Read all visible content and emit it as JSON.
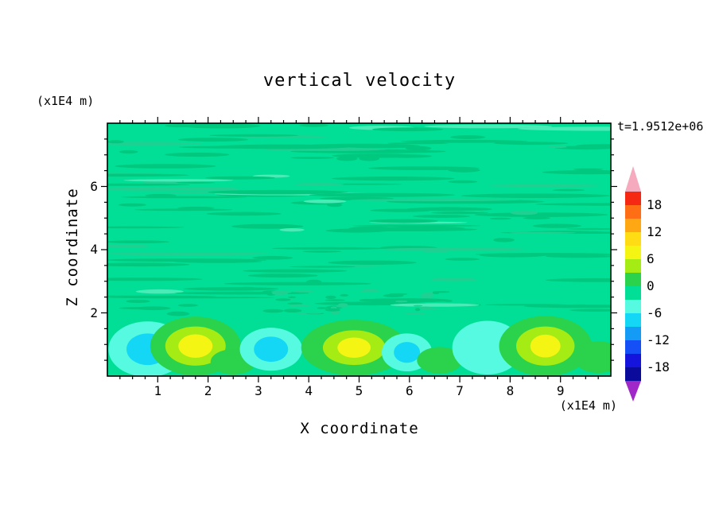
{
  "title": "vertical velocity",
  "timestamp": "t=1.9512e+06",
  "axes": {
    "x_label": "X coordinate",
    "x_unit": "(x1E4 m)",
    "z_label": "Z coordinate",
    "z_unit": "(x1E4 m)",
    "x_ticks": [
      1,
      2,
      3,
      4,
      5,
      6,
      7,
      8,
      9
    ],
    "z_ticks": [
      2,
      4,
      6
    ]
  },
  "colorbar": {
    "labels": [
      "18",
      "12",
      "6",
      "0",
      "-6",
      "-12",
      "-18"
    ],
    "cell_colors": [
      "#F52814",
      "#FF6E14",
      "#FFA814",
      "#FFDC14",
      "#F5F514",
      "#A5EB14",
      "#2BD24B",
      "#00DF95",
      "#55FAE1",
      "#14D7F5",
      "#149BF5",
      "#1450F5",
      "#1414DC",
      "#0A0A9B"
    ],
    "arrow_top_color": "#F5AABE",
    "arrow_bottom_color": "#A028C8"
  },
  "chart_data": {
    "type": "heatmap",
    "title": "vertical velocity",
    "xlabel": "X coordinate (x1E4 m)",
    "ylabel": "Z coordinate (x1E4 m)",
    "time_label": "t=1.9512e+06",
    "x_range": [
      0,
      10
    ],
    "z_range": [
      0,
      8
    ],
    "contour_levels": [
      -21,
      -18,
      -15,
      -12,
      -9,
      -6,
      -3,
      0,
      3,
      6,
      9,
      12,
      15,
      18,
      21
    ],
    "colorbar_tick_values": [
      18,
      12,
      6,
      0,
      -6,
      -12,
      -18
    ],
    "colorbar_position": "right",
    "background_value_band": [
      -3,
      0
    ],
    "background_color": "#00DF95",
    "description": "Near-zero vertical velocity aloft with thin streaky layered contours (z>2); shallow convective cells below z~2: updrafts peaking ~6-9 at x~1.75, 4.9, 8.7 and downdrafts ~-6 at x~0.8, 3.25, 5.95, 7.55",
    "texture": {
      "seed": 42,
      "streak_count": 150,
      "streak_colors": [
        "#00C87E",
        "#1ED193",
        "#49EBB7"
      ],
      "z_min": 1.95,
      "z_max": 7.95,
      "squiggle": {
        "count": 42,
        "x_min": 3.2,
        "x_max": 6.8,
        "z_min": 1.95,
        "z_max": 2.7
      }
    },
    "features": [
      {
        "kind": "downdraft",
        "cx": 0.8,
        "cz": 0.85,
        "peak_value": -7,
        "rings": [
          {
            "rx": 0.78,
            "rz": 0.88,
            "color": "#55FAE1"
          },
          {
            "rx": 0.42,
            "rz": 0.5,
            "color": "#14D7F5"
          }
        ]
      },
      {
        "kind": "updraft",
        "cx": 1.75,
        "cz": 0.95,
        "peak_value": 8,
        "rings": [
          {
            "rx": 0.9,
            "rz": 0.93,
            "color": "#2BD24B"
          },
          {
            "rx": 0.6,
            "rz": 0.62,
            "color": "#A5EB14"
          },
          {
            "rx": 0.34,
            "rz": 0.37,
            "color": "#F5F514"
          }
        ]
      },
      {
        "kind": "updraft-weak",
        "cx": 2.5,
        "cz": 0.45,
        "peak_value": 4,
        "rings": [
          {
            "rx": 0.45,
            "rz": 0.4,
            "color": "#2BD24B"
          }
        ]
      },
      {
        "kind": "downdraft",
        "cx": 3.25,
        "cz": 0.85,
        "peak_value": -7,
        "rings": [
          {
            "rx": 0.62,
            "rz": 0.68,
            "color": "#55FAE1"
          },
          {
            "rx": 0.34,
            "rz": 0.4,
            "color": "#14D7F5"
          }
        ]
      },
      {
        "kind": "updraft",
        "cx": 4.9,
        "cz": 0.9,
        "peak_value": 8,
        "rings": [
          {
            "rx": 1.05,
            "rz": 0.88,
            "color": "#2BD24B"
          },
          {
            "rx": 0.62,
            "rz": 0.55,
            "color": "#A5EB14"
          },
          {
            "rx": 0.33,
            "rz": 0.32,
            "color": "#F5F514"
          }
        ]
      },
      {
        "kind": "downdraft",
        "cx": 5.95,
        "cz": 0.75,
        "peak_value": -6,
        "rings": [
          {
            "rx": 0.5,
            "rz": 0.6,
            "color": "#55FAE1"
          },
          {
            "rx": 0.26,
            "rz": 0.33,
            "color": "#14D7F5"
          }
        ]
      },
      {
        "kind": "updraft-weak",
        "cx": 6.6,
        "cz": 0.5,
        "peak_value": 4,
        "rings": [
          {
            "rx": 0.45,
            "rz": 0.42,
            "color": "#2BD24B"
          }
        ]
      },
      {
        "kind": "downdraft",
        "cx": 7.55,
        "cz": 0.9,
        "peak_value": -5,
        "rings": [
          {
            "rx": 0.7,
            "rz": 0.85,
            "color": "#55FAE1"
          }
        ]
      },
      {
        "kind": "updraft",
        "cx": 8.7,
        "cz": 0.95,
        "peak_value": 8,
        "rings": [
          {
            "rx": 0.92,
            "rz": 0.95,
            "color": "#2BD24B"
          },
          {
            "rx": 0.58,
            "rz": 0.62,
            "color": "#A5EB14"
          },
          {
            "rx": 0.3,
            "rz": 0.36,
            "color": "#F5F514"
          }
        ]
      },
      {
        "kind": "updraft-weak",
        "cx": 9.75,
        "cz": 0.6,
        "peak_value": 4,
        "rings": [
          {
            "rx": 0.5,
            "rz": 0.5,
            "color": "#2BD24B"
          }
        ]
      }
    ]
  }
}
